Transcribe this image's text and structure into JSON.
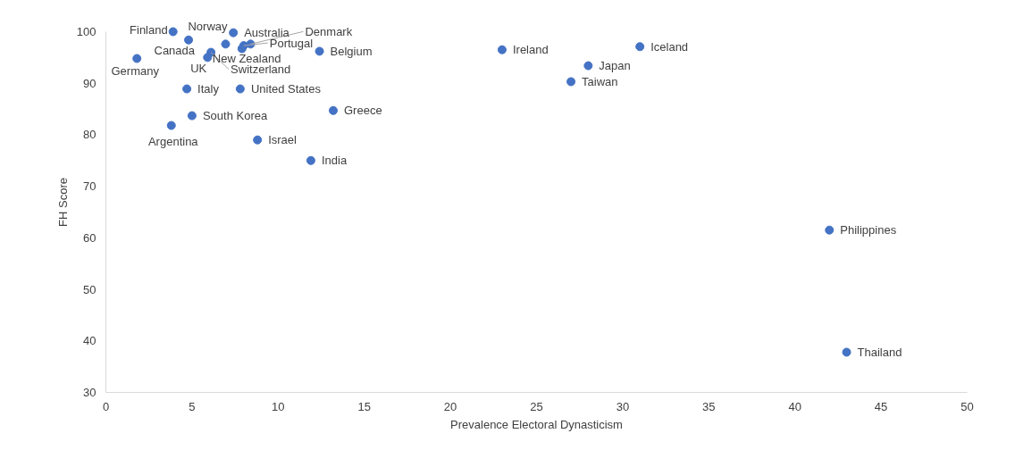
{
  "chart_data": {
    "type": "scatter",
    "xlabel": "Prevalence Electoral Dynasticism",
    "ylabel": "FH Score",
    "xlim": [
      0,
      50
    ],
    "ylim": [
      30,
      100
    ],
    "xticks": [
      0,
      5,
      10,
      15,
      20,
      25,
      30,
      35,
      40,
      45,
      50
    ],
    "yticks": [
      30,
      40,
      50,
      60,
      70,
      80,
      90,
      100
    ],
    "grid": false,
    "marker": "circle",
    "series": [
      {
        "color": "#4472c4",
        "x": [
          3.9,
          4.8,
          1.8,
          6.95,
          7.4,
          8.4,
          8.0,
          7.9,
          6.1,
          5.9,
          12.4,
          4.7,
          7.8,
          5.0,
          3.8,
          13.2,
          8.8,
          11.9,
          23,
          31,
          28,
          27,
          42,
          43
        ],
        "values": [
          100,
          98.4,
          94.8,
          97.6,
          99.8,
          97.6,
          97.3,
          96.7,
          96.0,
          95.0,
          96.2,
          88.9,
          88.9,
          83.7,
          81.8,
          84.7,
          79.0,
          75.0,
          96.5,
          97.1,
          93.4,
          90.3,
          61.5,
          37.8
        ]
      }
    ],
    "annotations": [
      {
        "text": "Finland",
        "x": 3.9,
        "y": 100
      },
      {
        "text": "Canada",
        "x": 4.8,
        "y": 98.4
      },
      {
        "text": "Germany",
        "x": 1.8,
        "y": 94.8
      },
      {
        "text": "Norway",
        "x": 6.95,
        "y": 97.6
      },
      {
        "text": "Australia",
        "x": 7.4,
        "y": 99.8
      },
      {
        "text": "Denmark",
        "x": 8.4,
        "y": 97.6
      },
      {
        "text": "Portugal",
        "x": 8.0,
        "y": 97.3
      },
      {
        "text": "New Zealand",
        "x": 7.9,
        "y": 96.7
      },
      {
        "text": "Switzerland",
        "x": 6.1,
        "y": 96.0
      },
      {
        "text": "UK",
        "x": 5.9,
        "y": 95.0
      },
      {
        "text": "Belgium",
        "x": 12.4,
        "y": 96.2
      },
      {
        "text": "Italy",
        "x": 4.7,
        "y": 88.9
      },
      {
        "text": "United States",
        "x": 7.8,
        "y": 88.9
      },
      {
        "text": "South Korea",
        "x": 5.0,
        "y": 83.7
      },
      {
        "text": "Argentina",
        "x": 3.8,
        "y": 81.8
      },
      {
        "text": "Greece",
        "x": 13.2,
        "y": 84.7
      },
      {
        "text": "Israel",
        "x": 8.8,
        "y": 79.0
      },
      {
        "text": "India",
        "x": 11.9,
        "y": 75.0
      },
      {
        "text": "Ireland",
        "x": 23,
        "y": 96.5
      },
      {
        "text": "Iceland",
        "x": 31,
        "y": 97.1
      },
      {
        "text": "Japan",
        "x": 28,
        "y": 93.4
      },
      {
        "text": "Taiwan",
        "x": 27,
        "y": 90.3
      },
      {
        "text": "Philippines",
        "x": 42,
        "y": 61.5
      },
      {
        "text": "Thailand",
        "x": 43,
        "y": 37.8
      }
    ]
  }
}
